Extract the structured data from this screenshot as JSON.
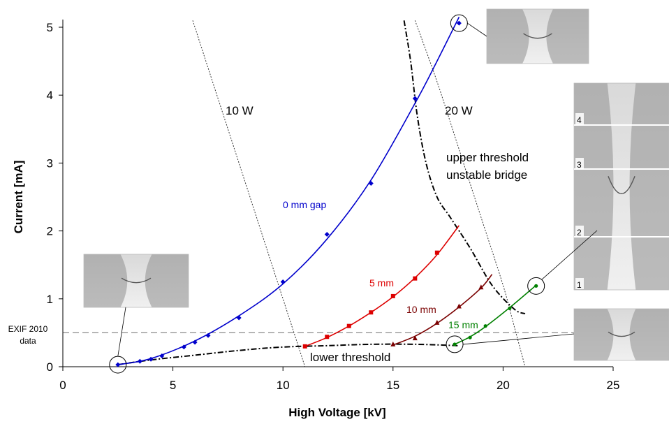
{
  "chart_data": {
    "type": "scatter",
    "xlabel": "High Voltage [kV]",
    "ylabel": "Current [mA]",
    "xlim": [
      0,
      25
    ],
    "ylim": [
      0,
      5.1
    ],
    "x_ticks": [
      0,
      5,
      10,
      15,
      20,
      25
    ],
    "y_ticks": [
      0,
      1,
      2,
      3,
      4,
      5
    ],
    "x_tick_labels": [
      "0",
      "5",
      "10",
      "15",
      "20",
      "25"
    ],
    "y_tick_labels": [
      "0",
      "1",
      "2",
      "3",
      "4",
      "5"
    ],
    "grid": false,
    "legend": "none",
    "series": [
      {
        "name": "0 mm gap",
        "color": "#0000cc",
        "marker": "diamond",
        "points": [
          [
            2.5,
            0.03
          ],
          [
            3.5,
            0.08
          ],
          [
            4.0,
            0.11
          ],
          [
            4.5,
            0.16
          ],
          [
            5.5,
            0.29
          ],
          [
            6.0,
            0.36
          ],
          [
            6.6,
            0.46
          ],
          [
            8.0,
            0.72
          ],
          [
            10.0,
            1.25
          ],
          [
            12.0,
            1.95
          ],
          [
            14.0,
            2.7
          ],
          [
            16.0,
            3.95
          ],
          [
            18.0,
            5.06
          ]
        ],
        "curve": [
          [
            2.5,
            0.03
          ],
          [
            4,
            0.12
          ],
          [
            6,
            0.38
          ],
          [
            8,
            0.75
          ],
          [
            10,
            1.22
          ],
          [
            12,
            1.88
          ],
          [
            14,
            2.75
          ],
          [
            16,
            3.88
          ],
          [
            17,
            4.5
          ],
          [
            18,
            5.15
          ]
        ]
      },
      {
        "name": "5 mm",
        "color": "#dd0000",
        "marker": "square",
        "points": [
          [
            11.0,
            0.3
          ],
          [
            12.0,
            0.44
          ],
          [
            13.0,
            0.6
          ],
          [
            14.0,
            0.8
          ],
          [
            15.0,
            1.04
          ],
          [
            16.0,
            1.3
          ],
          [
            17.0,
            1.68
          ]
        ],
        "curve": [
          [
            11,
            0.3
          ],
          [
            12,
            0.43
          ],
          [
            13,
            0.6
          ],
          [
            14,
            0.8
          ],
          [
            15,
            1.03
          ],
          [
            16,
            1.31
          ],
          [
            17,
            1.65
          ],
          [
            18,
            2.08
          ]
        ]
      },
      {
        "name": "10 mm",
        "color": "#7a0000",
        "marker": "triangle",
        "points": [
          [
            15.0,
            0.33
          ],
          [
            16.0,
            0.42
          ],
          [
            17.0,
            0.65
          ],
          [
            18.0,
            0.89
          ],
          [
            19.0,
            1.17
          ]
        ],
        "curve": [
          [
            15,
            0.32
          ],
          [
            16,
            0.45
          ],
          [
            17,
            0.64
          ],
          [
            18,
            0.88
          ],
          [
            19,
            1.16
          ],
          [
            19.5,
            1.36
          ]
        ]
      },
      {
        "name": "15 mm",
        "color": "#008000",
        "marker": "circle",
        "points": [
          [
            17.8,
            0.33
          ],
          [
            18.5,
            0.43
          ],
          [
            19.2,
            0.6
          ],
          [
            20.3,
            0.86
          ],
          [
            21.5,
            1.19
          ]
        ],
        "curve": [
          [
            17.8,
            0.33
          ],
          [
            18.5,
            0.44
          ],
          [
            19.2,
            0.59
          ],
          [
            20.3,
            0.87
          ],
          [
            21.5,
            1.2
          ]
        ]
      }
    ],
    "threshold_lines": [
      {
        "name": "lower threshold",
        "style": "dash-dot",
        "points": [
          [
            2.5,
            0.03
          ],
          [
            4,
            0.1
          ],
          [
            6,
            0.17
          ],
          [
            8,
            0.24
          ],
          [
            10,
            0.29
          ],
          [
            12,
            0.31
          ],
          [
            14,
            0.33
          ],
          [
            16,
            0.33
          ],
          [
            18,
            0.31
          ]
        ]
      },
      {
        "name": "upper threshold unstable bridge",
        "style": "dash-dot",
        "points": [
          [
            15.5,
            5.1
          ],
          [
            15.8,
            4.5
          ],
          [
            16.1,
            3.7
          ],
          [
            16.5,
            3.0
          ],
          [
            17.0,
            2.5
          ],
          [
            17.6,
            2.2
          ],
          [
            18.5,
            1.75
          ],
          [
            19.5,
            1.2
          ],
          [
            20.5,
            0.85
          ],
          [
            21.0,
            0.78
          ]
        ]
      }
    ],
    "power_curves": [
      {
        "name": "10 W",
        "points": [
          [
            5.9,
            5.1
          ],
          [
            7,
            4.0
          ],
          [
            8,
            3.0
          ],
          [
            9,
            2.0
          ],
          [
            10,
            1.0
          ],
          [
            10.5,
            0.5
          ],
          [
            11.0,
            0.0
          ]
        ]
      },
      {
        "name": "20 W",
        "points": [
          [
            16,
            5.1
          ],
          [
            17,
            4.2
          ],
          [
            18,
            3.2
          ],
          [
            19,
            2.2
          ],
          [
            20,
            1.2
          ],
          [
            20.5,
            0.6
          ],
          [
            21,
            0.0
          ]
        ]
      }
    ],
    "reference_line": {
      "label_lines": [
        "EXIF 2010",
        "data"
      ],
      "y": 0.5
    },
    "annotations": {
      "ten_w": "10 W",
      "twenty_w": "20 W",
      "upper_threshold_line1": "upper threshold",
      "upper_threshold_line2": "unstable bridge",
      "lower_threshold": "lower threshold",
      "gap0": "0 mm gap",
      "gap5": "5 mm",
      "gap10": "10 mm",
      "gap15": "15 mm"
    },
    "inset_numbers": [
      "4",
      "3",
      "2",
      "1"
    ]
  }
}
